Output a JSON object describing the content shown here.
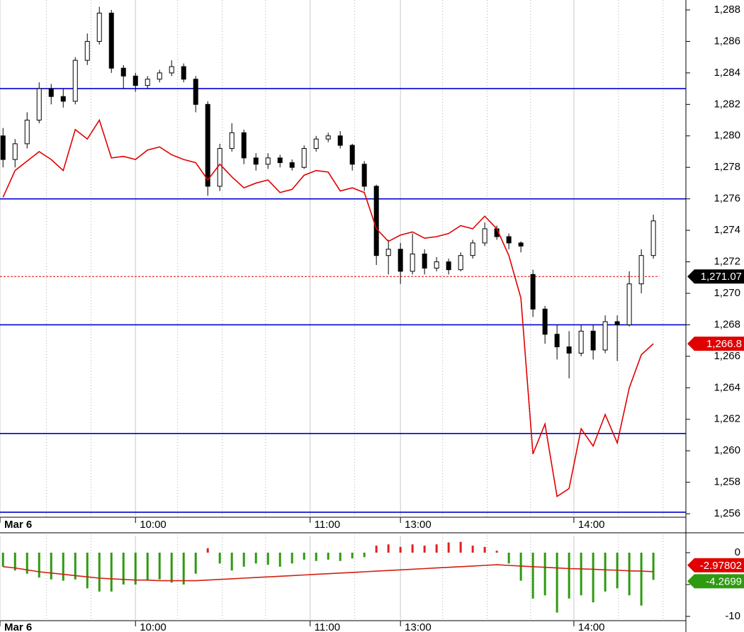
{
  "chart_data": [
    {
      "type": "candlestick",
      "xlim": [
        -0.25,
        56.7
      ],
      "xticks": [
        {
          "value": -0.25,
          "label": "Mar 6"
        },
        {
          "value": 11,
          "label": "10:00"
        },
        {
          "value": 25.5,
          "label": "11:00"
        },
        {
          "value": 33,
          "label": "13:00"
        },
        {
          "value": 47.4,
          "label": "14:00"
        }
      ],
      "xminor": [
        3.6,
        7.3,
        14.5,
        18.2,
        21.8,
        29.2,
        36.5,
        40.2,
        43.8,
        51.1,
        54.8
      ],
      "ylim": [
        1255.78,
        1288.63
      ],
      "yticks": [
        {
          "value": 1256,
          "label": "1,256"
        },
        {
          "value": 1258,
          "label": "1,258"
        },
        {
          "value": 1260,
          "label": "1,260"
        },
        {
          "value": 1262,
          "label": "1,262"
        },
        {
          "value": 1264,
          "label": "1,264"
        },
        {
          "value": 1266,
          "label": "1,266"
        },
        {
          "value": 1268,
          "label": "1,268"
        },
        {
          "value": 1270,
          "label": "1,270"
        },
        {
          "value": 1272,
          "label": "1,272"
        },
        {
          "value": 1274,
          "label": "1,274"
        },
        {
          "value": 1276,
          "label": "1,276"
        },
        {
          "value": 1278,
          "label": "1,278"
        },
        {
          "value": 1280,
          "label": "1,280"
        },
        {
          "value": 1282,
          "label": "1,282"
        },
        {
          "value": 1284,
          "label": "1,284"
        },
        {
          "value": 1286,
          "label": "1,286"
        },
        {
          "value": 1288,
          "label": "1,288"
        }
      ],
      "open": [
        1280,
        1278.5,
        1279.5,
        1281,
        1283,
        1282.5,
        1282.2,
        1284.8,
        1286,
        1287.8,
        1284.3,
        1283.8,
        1283.2,
        1283.6,
        1284,
        1284.4,
        1283.6,
        1282,
        1276.8,
        1279.2,
        1280.2,
        1278.6,
        1278.2,
        1278.6,
        1278.3,
        1278,
        1279.2,
        1279.8,
        1280,
        1279.4,
        1278.2,
        1276.8,
        1272.4,
        1272.8,
        1271.4,
        1272.5,
        1271.6,
        1272,
        1271.5,
        1272.4,
        1273.2,
        1274.1,
        1273.6,
        1273.2,
        1271.2,
        1269,
        1267.4,
        1266.6,
        1266.2,
        1267.6,
        1266.4,
        1268.2,
        1268,
        1270.6,
        1272.4
      ],
      "high": [
        1280.5,
        1279.8,
        1281.5,
        1283.4,
        1283.3,
        1283,
        1285,
        1286.5,
        1288.2,
        1288,
        1284.5,
        1284,
        1283.8,
        1284.2,
        1284.8,
        1284.6,
        1283.8,
        1282.2,
        1279.5,
        1280.8,
        1280.4,
        1278.9,
        1278.9,
        1278.8,
        1278.5,
        1279.4,
        1280,
        1280.2,
        1280.3,
        1279.5,
        1278.4,
        1276.9,
        1273.4,
        1273.2,
        1273.8,
        1272.8,
        1272.3,
        1272.2,
        1272.6,
        1273.4,
        1274.5,
        1274.3,
        1273.8,
        1273.3,
        1271.5,
        1269.2,
        1268,
        1267.6,
        1268,
        1268,
        1268.6,
        1268.6,
        1271.4,
        1272.8,
        1275
      ],
      "low": [
        1278,
        1278,
        1279.2,
        1280.8,
        1282,
        1281.8,
        1282,
        1284.5,
        1285.8,
        1284,
        1283,
        1282.8,
        1283,
        1283.4,
        1283.8,
        1283.4,
        1281.5,
        1276.2,
        1276.5,
        1279,
        1278.2,
        1277.8,
        1277.9,
        1278,
        1277.8,
        1277.9,
        1279,
        1279.6,
        1279.2,
        1277.8,
        1276.5,
        1271.8,
        1271.2,
        1270.6,
        1271.2,
        1271.2,
        1271.4,
        1271.2,
        1271.4,
        1272.2,
        1273,
        1273.4,
        1272.8,
        1272.6,
        1268.5,
        1266.8,
        1265.8,
        1264.6,
        1266,
        1265.8,
        1266.2,
        1265.7,
        1267.9,
        1270,
        1272.2
      ],
      "close": [
        1278.5,
        1279.5,
        1281,
        1283,
        1282.5,
        1282.2,
        1284.8,
        1286,
        1287.8,
        1284.3,
        1283.8,
        1283.2,
        1283.6,
        1284,
        1284.4,
        1283.6,
        1282,
        1276.8,
        1279.2,
        1280.2,
        1278.6,
        1278.2,
        1278.6,
        1278.3,
        1278,
        1279.2,
        1279.8,
        1280,
        1279.4,
        1278.2,
        1276.8,
        1272.4,
        1272.8,
        1271.4,
        1272.5,
        1271.6,
        1272,
        1271.5,
        1272.4,
        1273.2,
        1274.1,
        1273.6,
        1273.2,
        1273,
        1269,
        1267.4,
        1266.6,
        1266.2,
        1267.6,
        1266.4,
        1268.2,
        1268,
        1270.6,
        1272.4,
        1274.6
      ],
      "candle_color": "#000000",
      "overlay": {
        "color": "#e00000",
        "value_label": "1,266.8",
        "values": [
          1276.1,
          1277.8,
          1278.4,
          1279.0,
          1278.5,
          1277.8,
          1280.4,
          1279.8,
          1281.0,
          1278.6,
          1278.7,
          1278.5,
          1279.1,
          1279.3,
          1278.8,
          1278.5,
          1278.3,
          1277.2,
          1278.2,
          1277.4,
          1276.7,
          1277.0,
          1277.2,
          1276.4,
          1276.6,
          1277.5,
          1277.8,
          1277.7,
          1276.5,
          1276.7,
          1276.4,
          1274.1,
          1273.3,
          1273.7,
          1273.9,
          1273.5,
          1273.6,
          1273.8,
          1274.3,
          1274.1,
          1274.9,
          1274.1,
          1272.4,
          1269.7,
          1259.8,
          1261.7,
          1257.1,
          1257.6,
          1261.4,
          1260.3,
          1262.3,
          1260.5,
          1264.0,
          1266.1,
          1266.8
        ]
      },
      "levels": {
        "color": "#0000d0",
        "values": [
          1283.0,
          1276.0,
          1268.0,
          1261.1,
          1256.1
        ]
      },
      "reference": {
        "value": 1271.07,
        "label": "1,271.07",
        "color": "#e00000"
      }
    },
    {
      "type": "histogram",
      "xlim": [
        -0.25,
        56.7
      ],
      "xticks": [
        {
          "value": -0.25,
          "label": "Mar 6"
        },
        {
          "value": 11,
          "label": "10:00"
        },
        {
          "value": 25.5,
          "label": "11:00"
        },
        {
          "value": 33,
          "label": "13:00"
        },
        {
          "value": 47.4,
          "label": "14:00"
        }
      ],
      "xminor": [
        3.6,
        7.3,
        14.5,
        18.2,
        21.8,
        29.2,
        36.5,
        40.2,
        43.8,
        51.1,
        54.8
      ],
      "ylim": [
        -10.67,
        2.67
      ],
      "yticks": [
        0,
        -5,
        -10
      ],
      "bars": {
        "positive_color": "#e02020",
        "negative_color": "#2e9a10",
        "last_label": "-4.2699",
        "values": [
          -2.2,
          -2.8,
          -3.3,
          -3.9,
          -4.2,
          -4.4,
          -4.2,
          -5.6,
          -6.1,
          -6.1,
          -5,
          -5,
          -4.4,
          -4.2,
          -4.7,
          -5,
          -3.3,
          0.7,
          -1.7,
          -2.8,
          -2.2,
          -1.7,
          -1.9,
          -2.2,
          -1.7,
          -1.1,
          -1.3,
          -1.1,
          -1.3,
          -0.9,
          -0.7,
          1.1,
          1.3,
          0.9,
          1.3,
          1.1,
          1.3,
          1.6,
          1.7,
          1.1,
          0.9,
          0.3,
          -1.7,
          -4.4,
          -7.2,
          -6.7,
          -9.4,
          -7.2,
          -6.7,
          -7.8,
          -6.1,
          -5.6,
          -6.7,
          -8.3,
          -4.2699
        ]
      },
      "line": {
        "color": "#d02010",
        "last_label": "-2.97802",
        "values": [
          -2.2,
          -2.4,
          -2.7,
          -3.0,
          -3.2,
          -3.4,
          -3.6,
          -3.8,
          -4.0,
          -4.1,
          -4.2,
          -4.3,
          -4.3,
          -4.4,
          -4.4,
          -4.4,
          -4.4,
          -4.3,
          -4.2,
          -4.1,
          -4.0,
          -3.9,
          -3.8,
          -3.7,
          -3.6,
          -3.5,
          -3.4,
          -3.3,
          -3.2,
          -3.1,
          -3.0,
          -2.9,
          -2.8,
          -2.7,
          -2.6,
          -2.5,
          -2.4,
          -2.3,
          -2.2,
          -2.1,
          -2.0,
          -1.9,
          -2.0,
          -2.1,
          -2.2,
          -2.3,
          -2.4,
          -2.5,
          -2.55,
          -2.6,
          -2.7,
          -2.75,
          -2.85,
          -2.9,
          -2.97802
        ]
      }
    }
  ]
}
